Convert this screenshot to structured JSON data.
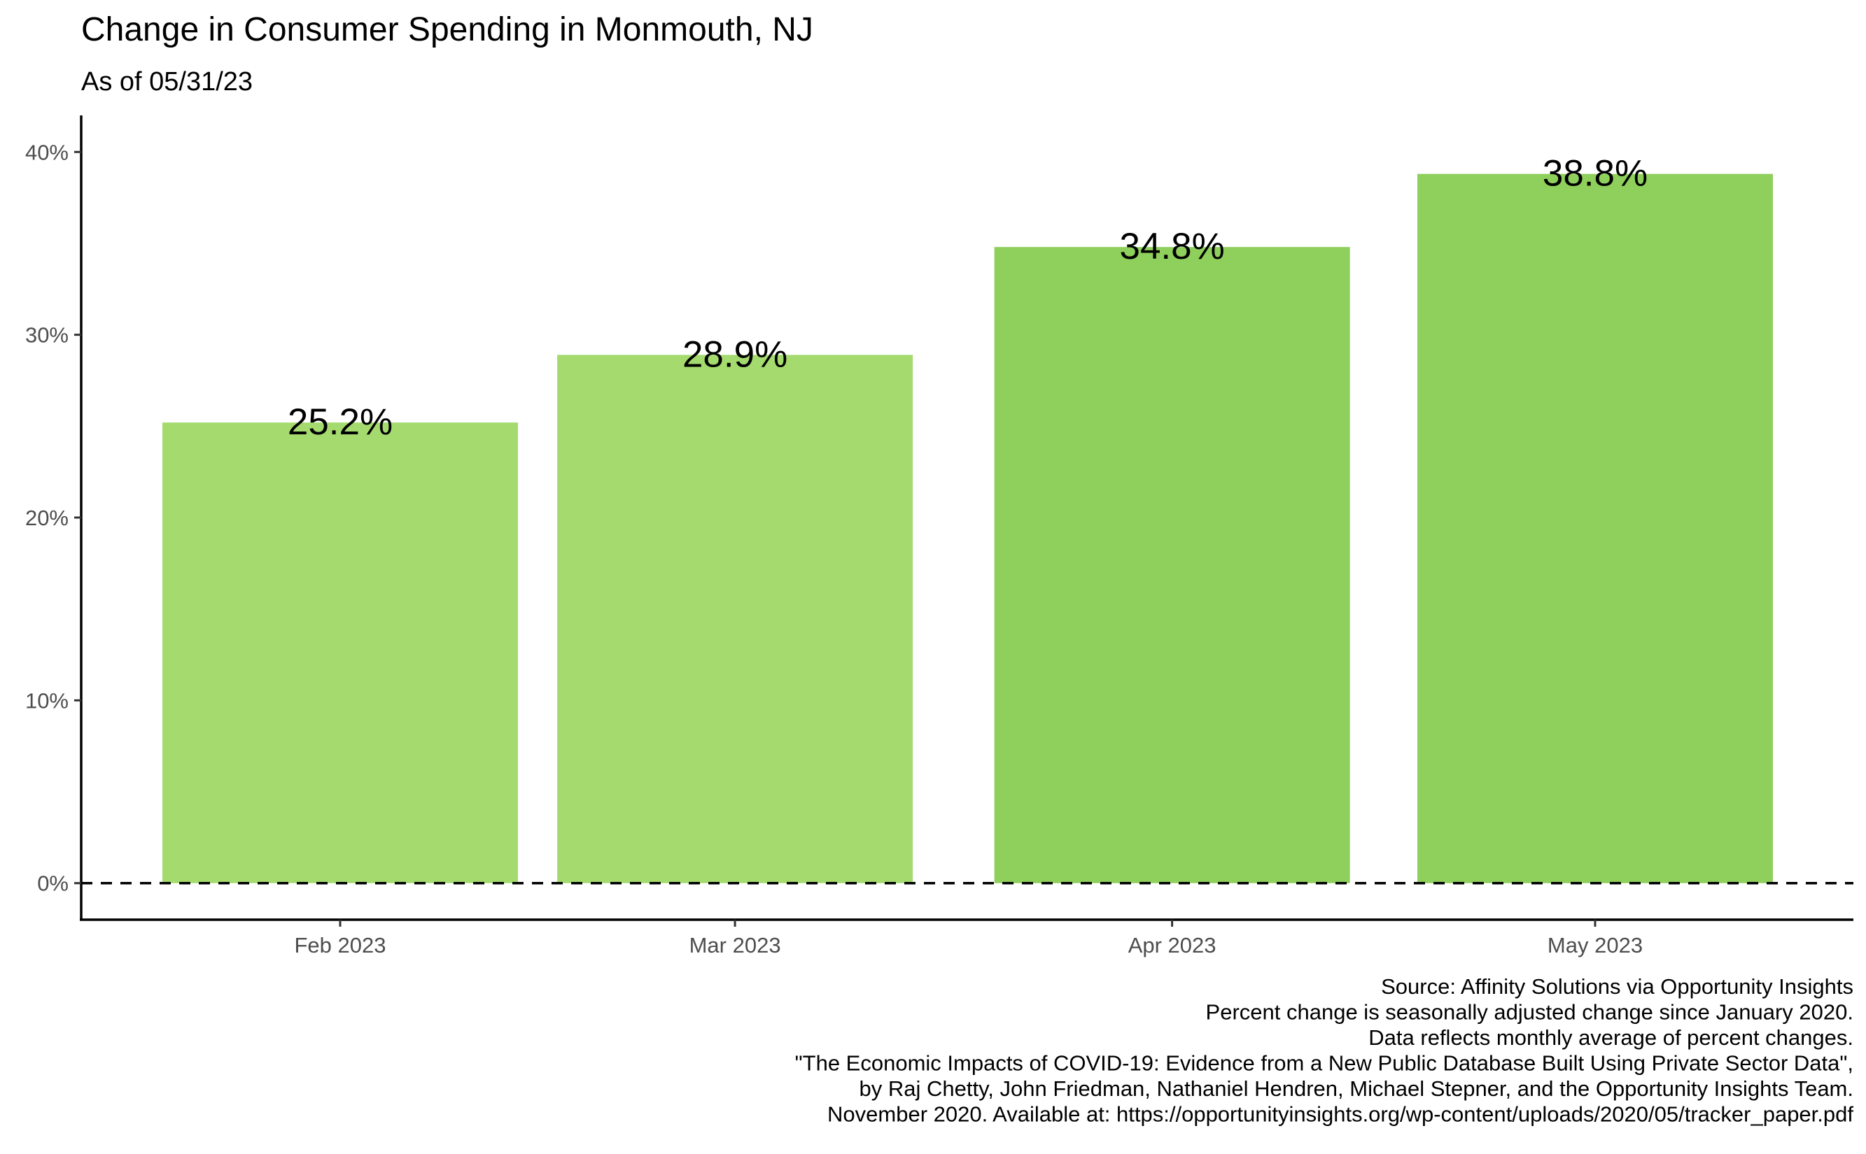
{
  "chart_data": {
    "type": "bar",
    "title": "Change in Consumer Spending in Monmouth, NJ",
    "subtitle": "As of 05/31/23",
    "xlabel": "",
    "ylabel": "",
    "categories": [
      "Feb 2023",
      "Mar 2023",
      "Apr 2023",
      "May 2023"
    ],
    "x": [
      "2023-02-01",
      "2023-03-01",
      "2023-04-01",
      "2023-05-01"
    ],
    "values": [
      25.2,
      28.9,
      34.8,
      38.8
    ],
    "data_labels": [
      "25.2%",
      "28.9%",
      "34.8%",
      "38.8%"
    ],
    "bar_colors": [
      "#a5db6e",
      "#a5db6e",
      "#8fcf5c",
      "#8fcf5c"
    ],
    "ylim": [
      -2,
      42
    ],
    "y_ticks": [
      0,
      10,
      20,
      30,
      40
    ],
    "y_tick_labels": [
      "0%",
      "10%",
      "20%",
      "30%",
      "40%"
    ],
    "reference_line": {
      "value": 0,
      "style": "dashed",
      "color": "#000000"
    },
    "grid": false,
    "legend": "none",
    "caption": [
      "Source: Affinity Solutions via Opportunity Insights",
      "Percent change is seasonally adjusted change since January 2020.",
      "Data reflects monthly average of percent changes.",
      "\"The Economic Impacts of COVID-19: Evidence from a New Public Database Built Using Private Sector Data\",",
      "by Raj Chetty, John Friedman, Nathaniel Hendren, Michael Stepner, and the Opportunity Insights Team.",
      "November 2020. Available at: https://opportunityinsights.org/wp-content/uploads/2020/05/tracker_paper.pdf"
    ]
  }
}
